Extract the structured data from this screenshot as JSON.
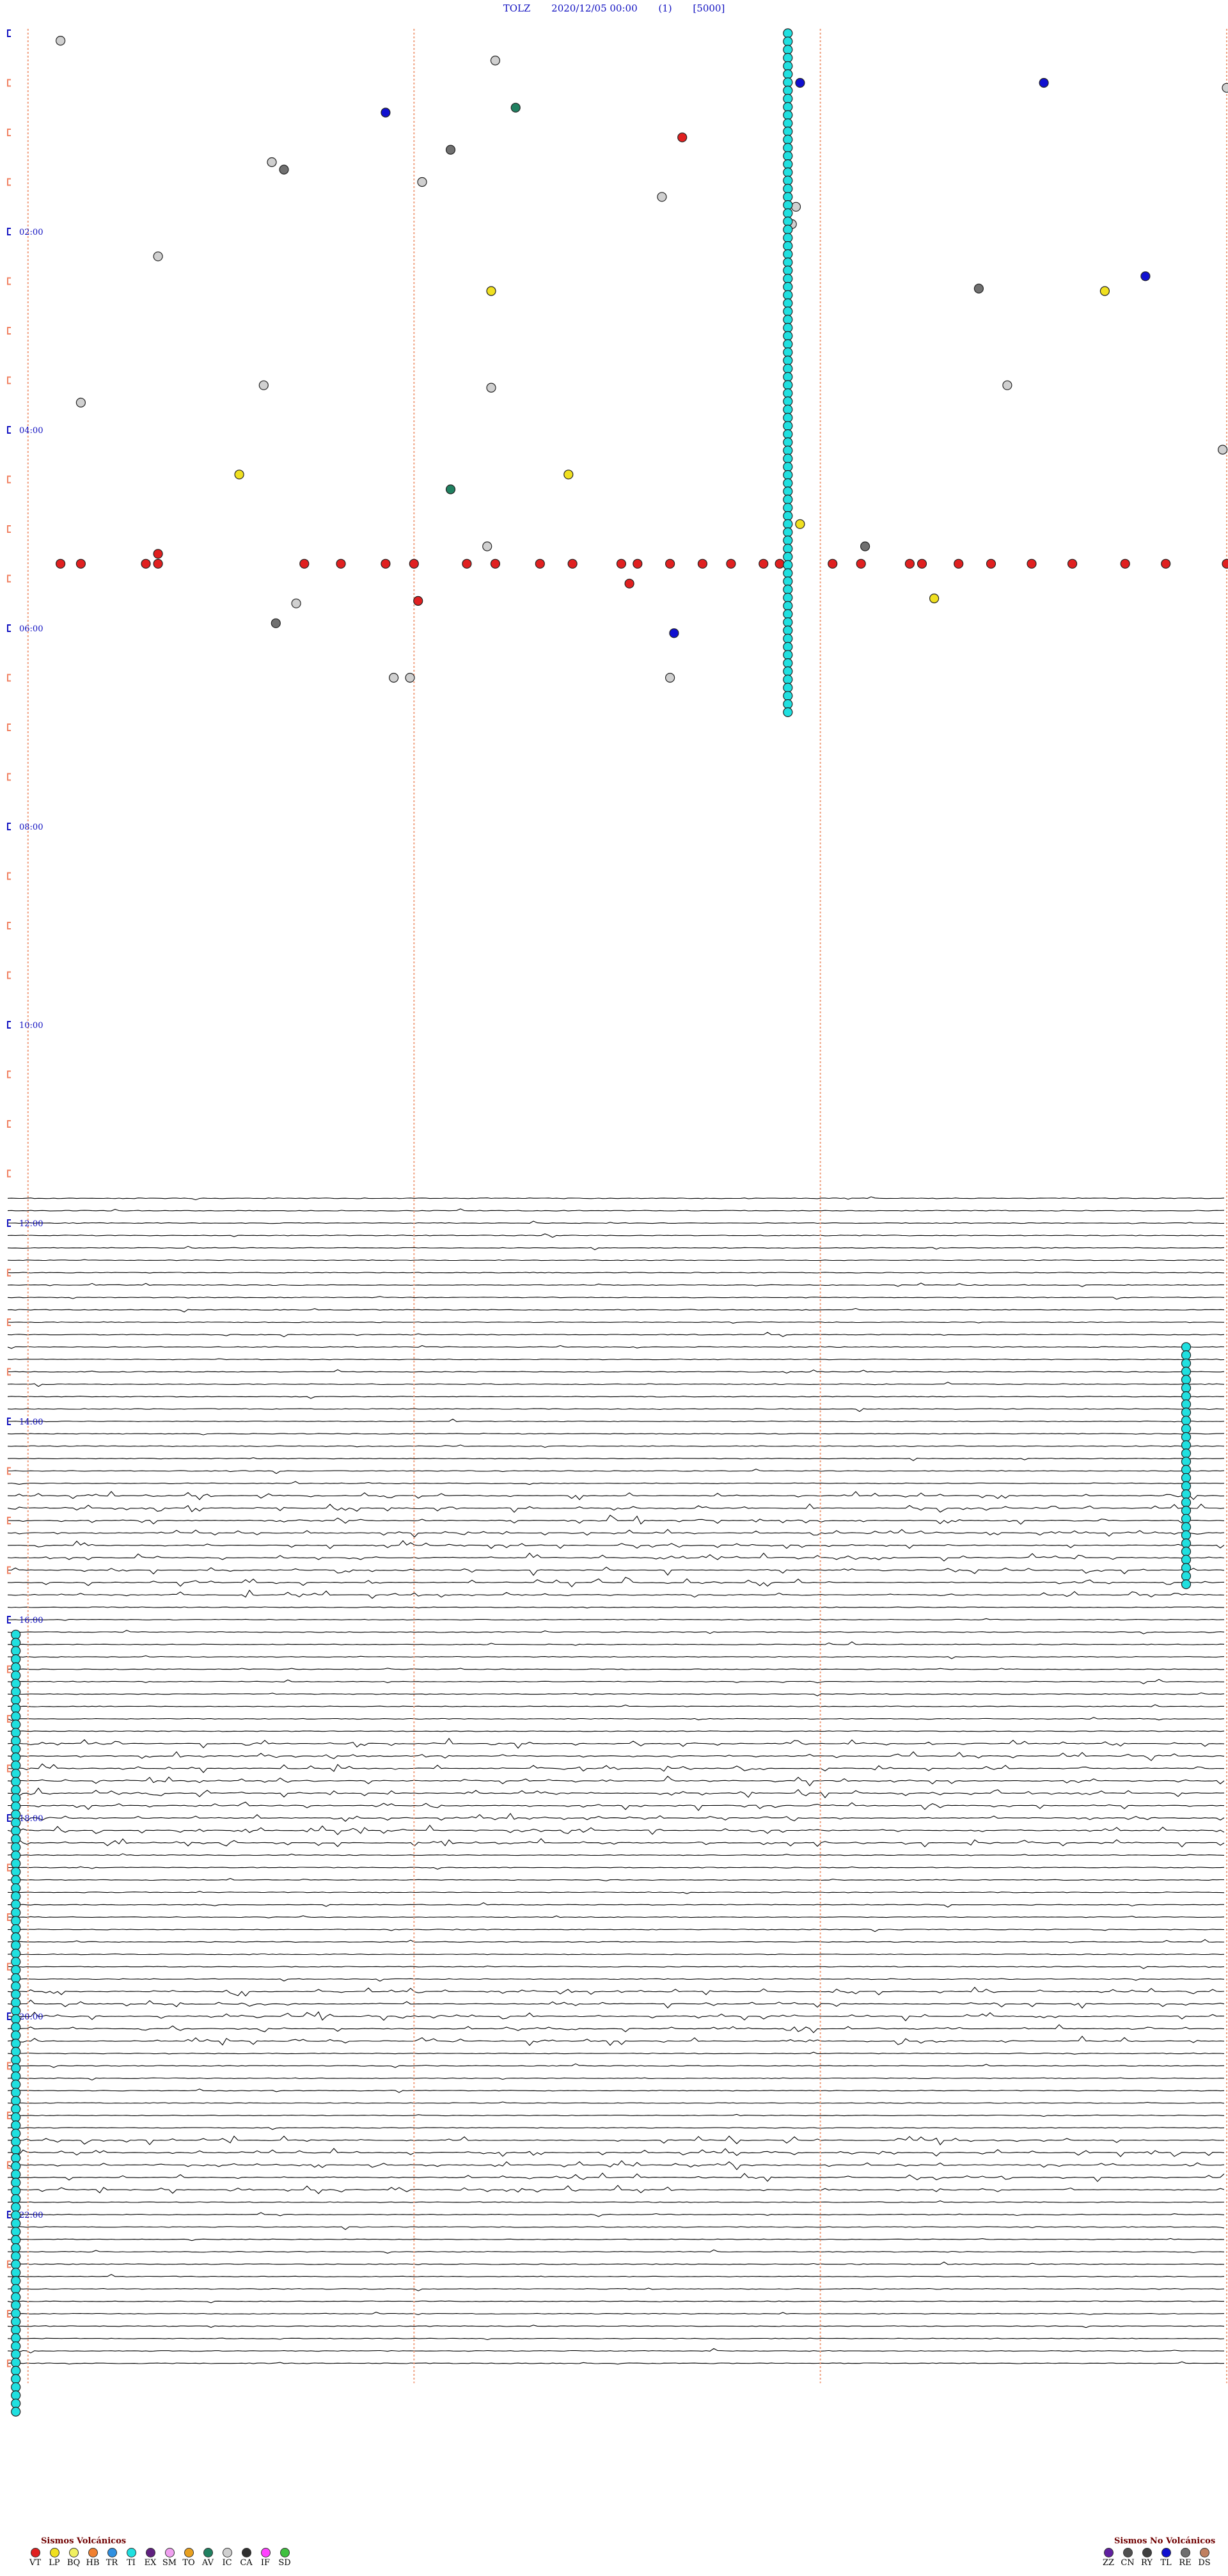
{
  "header": {
    "station": "TOLZ",
    "datetime": "2020/12/05 00:00",
    "channel": "(1)",
    "scale": "[5000]"
  },
  "chart_data": {
    "type": "helicorder",
    "row_count": 48,
    "minutes_per_row": 30,
    "hour_labels": [
      "02:00",
      "04:00",
      "06:00",
      "08:00",
      "10:00",
      "12:00",
      "14:00",
      "16:00",
      "18:00",
      "20:00",
      "22:00"
    ],
    "hour_label_rows": [
      4,
      8,
      12,
      16,
      20,
      24,
      28,
      32,
      36,
      40,
      44
    ],
    "trace_start_row": 23.5,
    "noisy_rows": [
      12,
      30,
      31,
      35,
      36,
      40,
      43
    ],
    "event_columns_minute": [
      0.5,
      10,
      20,
      30,
      40
    ],
    "event_types": {
      "VT": "#e02020",
      "LP": "#f0e020",
      "BQ": "#f0f060",
      "HB": "#f08030",
      "TR": "#3090e0",
      "TI": "#20e0e0",
      "EX": "#602080",
      "SM": "#f0a0f0",
      "TO": "#e8a020",
      "AV": "#208060",
      "IC": "#d0d0d0",
      "CA": "#303030",
      "IF": "#ff40ff",
      "SD": "#40c040",
      "ZZ": "#6020a0",
      "CN": "#505050",
      "RY": "#404040",
      "TL": "#1010d0",
      "RE": "#707070",
      "DS": "#c08060"
    },
    "events": [
      {
        "row": 0.15,
        "minute": 1.3,
        "type": "IC"
      },
      {
        "row": 0.55,
        "minute": 12.0,
        "type": "IC"
      },
      {
        "row": 1.0,
        "minute": 19.5,
        "type": "TL"
      },
      {
        "row": 1.0,
        "minute": 25.5,
        "type": "TL"
      },
      {
        "row": 1.1,
        "minute": 30.0,
        "type": "IC"
      },
      {
        "row": 1.2,
        "minute": 41.3,
        "type": "IC"
      },
      {
        "row": 1.6,
        "minute": 9.3,
        "type": "TL"
      },
      {
        "row": 1.5,
        "minute": 12.5,
        "type": "AV"
      },
      {
        "row": 1.45,
        "minute": 35.4,
        "type": "RE"
      },
      {
        "row": 1.75,
        "minute": 46.5,
        "type": "LP"
      },
      {
        "row": 1.9,
        "minute": 40.7,
        "type": "IC"
      },
      {
        "row": 2.3,
        "minute": 42.1,
        "type": "RE"
      },
      {
        "row": 2.1,
        "minute": 16.6,
        "type": "VT"
      },
      {
        "row": 2.35,
        "minute": 10.9,
        "type": "RE"
      },
      {
        "row": 2.6,
        "minute": 6.5,
        "type": "IC"
      },
      {
        "row": 2.75,
        "minute": 6.8,
        "type": "RE"
      },
      {
        "row": 3.0,
        "minute": 10.2,
        "type": "IC"
      },
      {
        "row": 2.8,
        "minute": 31.5,
        "type": "IC"
      },
      {
        "row": 2.8,
        "minute": 33.7,
        "type": "RE"
      },
      {
        "row": 2.6,
        "minute": 45.8,
        "type": "VT"
      },
      {
        "row": 3.3,
        "minute": 16.1,
        "type": "IC"
      },
      {
        "row": 3.5,
        "minute": 19.4,
        "type": "IC"
      },
      {
        "row": 3.85,
        "minute": 19.3,
        "type": "IC"
      },
      {
        "row": 4.5,
        "minute": 3.7,
        "type": "IC"
      },
      {
        "row": 4.3,
        "minute": 32.5,
        "type": "DS"
      },
      {
        "row": 4.9,
        "minute": 28.0,
        "type": "TL"
      },
      {
        "row": 5.2,
        "minute": 11.9,
        "type": "LP"
      },
      {
        "row": 5.15,
        "minute": 23.9,
        "type": "RE"
      },
      {
        "row": 5.2,
        "minute": 27.0,
        "type": "LP"
      },
      {
        "row": 5.0,
        "minute": 35.3,
        "type": "IC"
      },
      {
        "row": 5.75,
        "minute": 44.3,
        "type": "VT"
      },
      {
        "row": 6.3,
        "minute": 32.9,
        "type": "IC"
      },
      {
        "row": 7.1,
        "minute": 6.3,
        "type": "IC"
      },
      {
        "row": 7.15,
        "minute": 11.9,
        "type": "IC"
      },
      {
        "row": 7.1,
        "minute": 24.6,
        "type": "IC"
      },
      {
        "row": 7.45,
        "minute": 1.8,
        "type": "IC"
      },
      {
        "row": 8.4,
        "minute": 29.9,
        "type": "IC"
      },
      {
        "row": 8.7,
        "minute": 31.7,
        "type": "IC"
      },
      {
        "row": 8.6,
        "minute": 39.7,
        "type": "LP"
      },
      {
        "row": 8.9,
        "minute": 5.7,
        "type": "LP"
      },
      {
        "row": 8.9,
        "minute": 13.8,
        "type": "LP"
      },
      {
        "row": 8.9,
        "minute": 31.1,
        "type": "LP"
      },
      {
        "row": 8.9,
        "minute": 35.1,
        "type": "TO"
      },
      {
        "row": 8.4,
        "minute": 49.3,
        "type": "CA"
      },
      {
        "row": 9.2,
        "minute": 10.9,
        "type": "AV"
      },
      {
        "row": 9.6,
        "minute": 42.7,
        "type": "CA"
      },
      {
        "row": 9.9,
        "minute": 19.5,
        "type": "LP"
      },
      {
        "row": 10.05,
        "minute": 47.6,
        "type": "IC"
      },
      {
        "row": 10.5,
        "minute": 3.7,
        "type": "VT"
      },
      {
        "row": 10.35,
        "minute": 11.8,
        "type": "IC"
      },
      {
        "row": 10.35,
        "minute": 21.1,
        "type": "RE"
      },
      {
        "row": 10.35,
        "minute": 36.6,
        "type": "LP"
      },
      {
        "row": 10.35,
        "minute": 42.0,
        "type": "LP"
      },
      {
        "row": 10.35,
        "minute": 47.2,
        "type": "TR"
      },
      {
        "row": 11.1,
        "minute": 15.3,
        "type": "VT"
      },
      {
        "row": 11.45,
        "minute": 10.1,
        "type": "VT"
      },
      {
        "row": 11.4,
        "minute": 22.8,
        "type": "LP"
      },
      {
        "row": 11.5,
        "minute": 7.1,
        "type": "IC"
      },
      {
        "row": 11.9,
        "minute": 6.6,
        "type": "RE"
      },
      {
        "row": 11.5,
        "minute": 30.5,
        "type": "VT"
      },
      {
        "row": 11.5,
        "minute": 33.3,
        "type": "VT"
      },
      {
        "row": 11.5,
        "minute": 34.3,
        "type": "VT"
      },
      {
        "row": 11.85,
        "minute": 44.4,
        "type": "IC"
      },
      {
        "row": 12.0,
        "minute": 34.2,
        "type": "IC"
      },
      {
        "row": 12.0,
        "minute": 41.6,
        "type": "RE"
      },
      {
        "row": 12.1,
        "minute": 16.4,
        "type": "TL"
      },
      {
        "row": 12.5,
        "minute": 30.5,
        "type": "VT"
      },
      {
        "row": 12.7,
        "minute": 43.5,
        "type": "VT"
      },
      {
        "row": 13.0,
        "minute": 9.5,
        "type": "IC"
      },
      {
        "row": 13.0,
        "minute": 9.9,
        "type": "IC"
      },
      {
        "row": 13.0,
        "minute": 16.3,
        "type": "IC"
      },
      {
        "row": 13.4,
        "minute": 41.0,
        "type": "TL"
      },
      {
        "row": 13.15,
        "minute": 36.7,
        "type": "CA"
      },
      {
        "row": 13.3,
        "minute": 48.5,
        "type": "IC"
      }
    ],
    "vt_burst_row": 10.7,
    "vt_burst_minutes": [
      1.3,
      1.8,
      3.4,
      3.7,
      7.3,
      8.2,
      9.3,
      10.0,
      11.3,
      12.0,
      13.1,
      13.9,
      15.1,
      15.5,
      16.3,
      17.1,
      17.8,
      18.6,
      19.0,
      20.3,
      21.0,
      22.2,
      22.5,
      23.4,
      24.2,
      25.2,
      26.2,
      27.5,
      28.5,
      30.0,
      31.6,
      31.9,
      32.8,
      33.5,
      34.1,
      35.1,
      35.9,
      37.1,
      37.6,
      38.7,
      39.5,
      40.3,
      41.5,
      42.0,
      42.8,
      43.9,
      44.5,
      47.1,
      47.8,
      48.5
    ],
    "ti_column_minute": 19.2,
    "ti_column_rows": [
      0,
      13.8
    ],
    "ti_column2_minute": 29.0,
    "ti_column2_rows": [
      26.5,
      31.3
    ],
    "ti_column3_minute": 0.2,
    "ti_column3_rows": [
      32.3,
      48
    ]
  },
  "legend": {
    "volcanic_title": "Sismos Volcánicos",
    "volcanic_codes": [
      "VT",
      "LP",
      "BQ",
      "HB",
      "TR",
      "TI",
      "EX",
      "SM",
      "TO",
      "AV",
      "IC",
      "CA",
      "IF",
      "SD"
    ],
    "non_volcanic_title": "Sismos No Volcánicos",
    "non_volcanic_codes": [
      "ZZ",
      "CN",
      "RY",
      "TL",
      "RE",
      "DS"
    ]
  }
}
